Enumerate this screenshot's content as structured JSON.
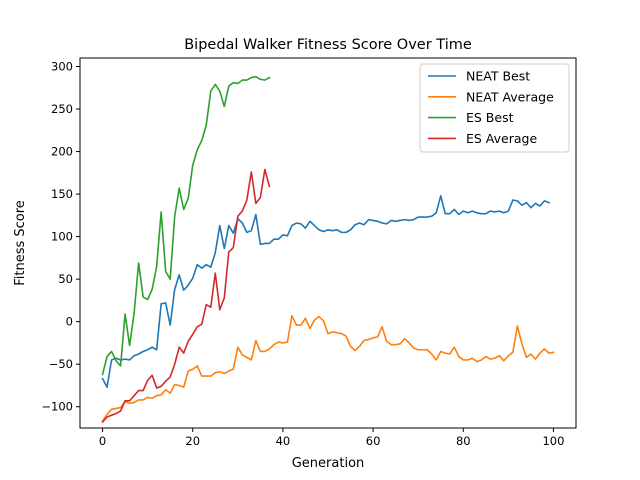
{
  "chart_data": {
    "type": "line",
    "title": "Bipedal Walker Fitness Score Over Time",
    "xlabel": "Generation",
    "ylabel": "Fitness Score",
    "xlim": [
      -5,
      105
    ],
    "ylim": [
      -125,
      310
    ],
    "xticks": [
      0,
      20,
      40,
      60,
      80,
      100
    ],
    "yticks": [
      -100,
      -50,
      0,
      50,
      100,
      150,
      200,
      250,
      300
    ],
    "ytick_labels": [
      "−100",
      "−50",
      "0",
      "50",
      "100",
      "150",
      "200",
      "250",
      "300"
    ],
    "grid": false,
    "legend_position": "top-right",
    "series": [
      {
        "name": "NEAT Best",
        "color": "#1f77b4",
        "y": [
          -67,
          -77,
          -45,
          -43,
          -45,
          -44,
          -45,
          -40,
          -38,
          -35,
          -33,
          -30,
          -33,
          21,
          22,
          -4,
          38,
          55,
          37,
          43,
          51,
          67,
          63,
          67,
          64,
          81,
          113,
          86,
          113,
          104,
          121,
          116,
          105,
          107,
          126,
          91,
          92,
          92,
          97,
          97,
          102,
          101,
          113,
          116,
          115,
          110,
          118,
          113,
          108,
          106,
          108,
          107,
          108,
          105,
          105,
          108,
          114,
          116,
          114,
          120,
          119,
          118,
          116,
          115,
          119,
          118,
          119,
          120,
          119,
          120,
          123,
          123,
          123,
          124,
          128,
          148,
          127,
          127,
          132,
          126,
          130,
          128,
          130,
          128,
          127,
          127,
          130,
          129,
          130,
          128,
          130,
          143,
          142,
          137,
          140,
          134,
          139,
          136,
          142,
          140
        ]
      },
      {
        "name": "NEAT Average",
        "color": "#ff7f0e",
        "y": [
          -117,
          -109,
          -103,
          -102,
          -101,
          -94,
          -96,
          -95,
          -92,
          -92,
          -89,
          -90,
          -87,
          -86,
          -80,
          -84,
          -74,
          -75,
          -77,
          -58,
          -56,
          -52,
          -64,
          -64,
          -64,
          -60,
          -59,
          -61,
          -58,
          -56,
          -30,
          -39,
          -42,
          -45,
          -22,
          -35,
          -35,
          -32,
          -27,
          -24,
          -25,
          -24,
          7,
          -4,
          -4,
          4,
          -8,
          2,
          6,
          1,
          -14,
          -12,
          -13,
          -14,
          -17,
          -29,
          -34,
          -29,
          -22,
          -21,
          -19,
          -18,
          -6,
          -23,
          -27,
          -27,
          -26,
          -20,
          -25,
          -31,
          -33,
          -33,
          -33,
          -38,
          -45,
          -35,
          -37,
          -38,
          -30,
          -41,
          -45,
          -45,
          -43,
          -47,
          -45,
          -41,
          -44,
          -43,
          -40,
          -46,
          -40,
          -36,
          -5,
          -26,
          -42,
          -38,
          -44,
          -37,
          -32,
          -37,
          -36
        ]
      },
      {
        "name": "ES Best",
        "color": "#2ca02c",
        "y": [
          -62,
          -41,
          -35,
          -46,
          -52,
          9,
          -28,
          10,
          69,
          29,
          26,
          38,
          65,
          129,
          59,
          50,
          124,
          157,
          132,
          145,
          184,
          202,
          213,
          231,
          271,
          279,
          271,
          253,
          277,
          281,
          280,
          284,
          284,
          287,
          288,
          285,
          284,
          287
        ]
      },
      {
        "name": "ES Average",
        "color": "#d62728",
        "y": [
          -118,
          -112,
          -110,
          -108,
          -105,
          -93,
          -93,
          -87,
          -81,
          -81,
          -69,
          -63,
          -78,
          -76,
          -70,
          -65,
          -50,
          -30,
          -37,
          -23,
          -15,
          -6,
          -3,
          20,
          17,
          57,
          14,
          28,
          82,
          87,
          124,
          130,
          143,
          176,
          139,
          146,
          179,
          159
        ]
      }
    ]
  }
}
